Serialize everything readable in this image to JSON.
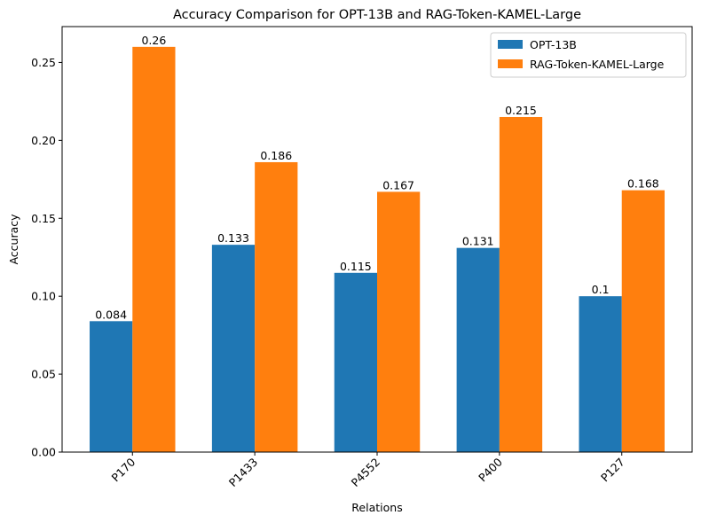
{
  "chart_data": {
    "type": "bar",
    "title": "Accuracy Comparison for OPT-13B and RAG-Token-KAMEL-Large",
    "xlabel": "Relations",
    "ylabel": "Accuracy",
    "categories": [
      "P170",
      "P1433",
      "P4552",
      "P400",
      "P127"
    ],
    "series": [
      {
        "name": "OPT-13B",
        "color": "#1f77b4",
        "values": [
          0.084,
          0.133,
          0.115,
          0.131,
          0.1
        ],
        "labels": [
          "0.084",
          "0.133",
          "0.115",
          "0.131",
          "0.1"
        ]
      },
      {
        "name": "RAG-Token-KAMEL-Large",
        "color": "#ff7f0e",
        "values": [
          0.26,
          0.186,
          0.167,
          0.215,
          0.168
        ],
        "labels": [
          "0.26",
          "0.186",
          "0.167",
          "0.215",
          "0.168"
        ]
      }
    ],
    "ylim": [
      0,
      0.273
    ],
    "yticks": [
      0.0,
      0.05,
      0.1,
      0.15,
      0.2,
      0.25
    ],
    "ytick_labels": [
      "0.00",
      "0.05",
      "0.10",
      "0.15",
      "0.20",
      "0.25"
    ],
    "xtick_rotation": 45,
    "grid": false,
    "legend_position": "top-right"
  }
}
